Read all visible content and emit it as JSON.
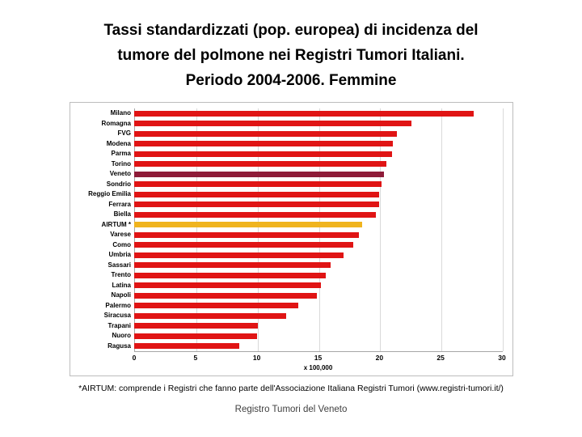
{
  "title": {
    "text": "Tassi standardizzati (pop. europea) di incidenza del\ntumore del polmone nei Registri Tumori Italiani.\nPeriodo 2004-2006. Femmine"
  },
  "chart_data": {
    "type": "bar",
    "orientation": "horizontal",
    "title": "Tassi standardizzati (pop. europea) di incidenza del tumore del polmone nei Registri Tumori Italiani. Periodo 2004-2006. Femmine",
    "xlabel": "x 100,000",
    "ylabel": "",
    "xlim": [
      0,
      30
    ],
    "xticks": [
      0,
      5,
      10,
      15,
      20,
      25,
      30
    ],
    "grid": true,
    "legend": false,
    "categories": [
      "Milano",
      "Romagna",
      "FVG",
      "Modena",
      "Parma",
      "Torino",
      "Veneto",
      "Sondrio",
      "Reggio Emilia",
      "Ferrara",
      "Biella",
      "AIRTUM *",
      "Varese",
      "Como",
      "Umbria",
      "Sassari",
      "Trento",
      "Latina",
      "Napoli",
      "Palermo",
      "Siracusa",
      "Trapani",
      "Nuoro",
      "Ragusa"
    ],
    "values": [
      27.7,
      22.6,
      21.4,
      21.1,
      21.0,
      20.6,
      20.4,
      20.2,
      20.0,
      20.0,
      19.7,
      18.6,
      18.3,
      17.9,
      17.1,
      16.0,
      15.6,
      15.2,
      14.9,
      13.4,
      12.4,
      10.1,
      10.0,
      8.6
    ],
    "default_color": "#e01414",
    "colors": [
      "#e01414",
      "#e01414",
      "#e01414",
      "#e01414",
      "#e01414",
      "#e01414",
      "#8e1b38",
      "#e01414",
      "#e01414",
      "#e01414",
      "#e01414",
      "#f0b41e",
      "#e01414",
      "#e01414",
      "#e01414",
      "#e01414",
      "#e01414",
      "#e01414",
      "#e01414",
      "#e01414",
      "#e01414",
      "#e01414",
      "#e01414",
      "#e01414"
    ],
    "highlight_colors": {
      "Veneto": "#8e1b38",
      "AIRTUM *": "#f0b41e"
    },
    "gridline_color": "#d9d9d9",
    "axis_color": "#a6a6a6"
  },
  "footnote": {
    "text": "*AIRTUM: comprende i Registri che fanno parte dell'Associazione Italiana Registri Tumori (www.registri-tumori.it/)"
  },
  "footer": {
    "text": "Registro Tumori del Veneto"
  }
}
